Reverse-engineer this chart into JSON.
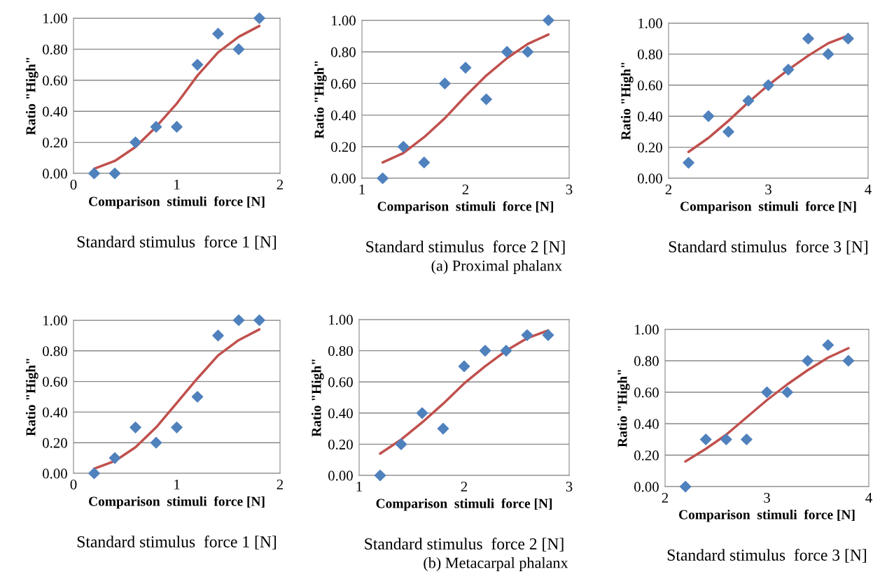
{
  "chart_data": [
    {
      "type": "scatter",
      "xlabel": "Comparison  stimuli  force [N]",
      "ylabel": "Ratio \"High\"",
      "annotations": [
        "Standard stimulus  force 1 [N]"
      ],
      "x": [
        0.2,
        0.4,
        0.6,
        0.8,
        1.0,
        1.2,
        1.4,
        1.6,
        1.8
      ],
      "xlim": [
        0,
        2
      ],
      "xticks": [
        0,
        1,
        2
      ],
      "ylim": [
        0,
        1
      ],
      "yticks": [
        {
          "value": 0,
          "label": "0.00"
        },
        {
          "value": 0.2,
          "label": "0.20"
        },
        {
          "value": 0.4,
          "label": "0.40"
        },
        {
          "value": 0.6,
          "label": "0.60"
        },
        {
          "value": 0.8,
          "label": "0.80"
        },
        {
          "value": 1,
          "label": "1.00"
        }
      ],
      "grid": "y",
      "legend": false,
      "series": [
        {
          "color": "#4f81bd",
          "marker": "diamond",
          "values": [
            0,
            0,
            0.2,
            0.3,
            0.3,
            0.7,
            0.9,
            0.8,
            1.0
          ]
        },
        {
          "type": "line",
          "color": "#c0504d",
          "marker": "none",
          "line_style": "solid",
          "values": [
            0.03,
            0.08,
            0.17,
            0.3,
            0.45,
            0.63,
            0.78,
            0.88,
            0.95
          ]
        }
      ]
    },
    {
      "type": "scatter",
      "xlabel": "Comparison  stimuli  force [N]",
      "ylabel": "Ratio \"High\"",
      "annotations": [
        "Standard stimulus  force 2 [N]",
        "(a) Proximal phalanx"
      ],
      "x": [
        1.2,
        1.4,
        1.6,
        1.8,
        2.0,
        2.2,
        2.4,
        2.6,
        2.8
      ],
      "xlim": [
        1,
        3
      ],
      "xticks": [
        1,
        2,
        3
      ],
      "ylim": [
        0,
        1
      ],
      "yticks": [
        {
          "value": 0,
          "label": "0.00"
        },
        {
          "value": 0.2,
          "label": "0.20"
        },
        {
          "value": 0.4,
          "label": "0.40"
        },
        {
          "value": 0.6,
          "label": "0.60"
        },
        {
          "value": 0.8,
          "label": "0.80"
        },
        {
          "value": 1,
          "label": "1.00"
        }
      ],
      "grid": "y",
      "legend": false,
      "series": [
        {
          "color": "#4f81bd",
          "marker": "diamond",
          "values": [
            0,
            0.2,
            0.1,
            0.6,
            0.7,
            0.5,
            0.8,
            0.8,
            1.0
          ]
        },
        {
          "type": "line",
          "color": "#c0504d",
          "marker": "none",
          "line_style": "solid",
          "values": [
            0.1,
            0.16,
            0.26,
            0.38,
            0.52,
            0.65,
            0.76,
            0.85,
            0.91
          ]
        }
      ]
    },
    {
      "type": "scatter",
      "xlabel": "Comparison  stimuli  force [N]",
      "ylabel": "Ratio \"High\"",
      "annotations": [
        "Standard stimulus  force 3 [N]"
      ],
      "x": [
        2.2,
        2.4,
        2.6,
        2.8,
        3.0,
        3.2,
        3.4,
        3.6,
        3.8
      ],
      "xlim": [
        2,
        4
      ],
      "xticks": [
        2,
        3,
        4
      ],
      "ylim": [
        0,
        1
      ],
      "yticks": [
        {
          "value": 0,
          "label": "0.00"
        },
        {
          "value": 0.2,
          "label": "0.20"
        },
        {
          "value": 0.4,
          "label": "0.40"
        },
        {
          "value": 0.6,
          "label": "0.60"
        },
        {
          "value": 0.8,
          "label": "0.80"
        },
        {
          "value": 1,
          "label": "1.00"
        }
      ],
      "grid": "y",
      "legend": false,
      "series": [
        {
          "color": "#4f81bd",
          "marker": "diamond",
          "values": [
            0.1,
            0.4,
            0.3,
            0.5,
            0.6,
            0.7,
            0.9,
            0.8,
            0.9
          ]
        },
        {
          "type": "line",
          "color": "#c0504d",
          "marker": "none",
          "line_style": "solid",
          "values": [
            0.17,
            0.26,
            0.37,
            0.49,
            0.6,
            0.7,
            0.79,
            0.87,
            0.92
          ]
        }
      ]
    },
    {
      "type": "scatter",
      "xlabel": "Comparison  stimuli  force [N]",
      "ylabel": "Ratio \"High\"",
      "annotations": [
        "Standard stimulus  force 1 [N]"
      ],
      "x": [
        0.2,
        0.4,
        0.6,
        0.8,
        1.0,
        1.2,
        1.4,
        1.6,
        1.8
      ],
      "xlim": [
        0,
        2
      ],
      "xticks": [
        0,
        1,
        2
      ],
      "ylim": [
        0,
        1
      ],
      "yticks": [
        {
          "value": 0,
          "label": "0.00"
        },
        {
          "value": 0.2,
          "label": "0.20"
        },
        {
          "value": 0.4,
          "label": "0.40"
        },
        {
          "value": 0.6,
          "label": "0.60"
        },
        {
          "value": 0.8,
          "label": "0.80"
        },
        {
          "value": 1,
          "label": "1.00"
        }
      ],
      "grid": "y",
      "legend": false,
      "series": [
        {
          "color": "#4f81bd",
          "marker": "diamond",
          "values": [
            0,
            0.1,
            0.3,
            0.2,
            0.3,
            0.5,
            0.9,
            1.0,
            1.0
          ]
        },
        {
          "type": "line",
          "color": "#c0504d",
          "marker": "none",
          "line_style": "solid",
          "values": [
            0.03,
            0.08,
            0.17,
            0.3,
            0.46,
            0.62,
            0.77,
            0.87,
            0.94
          ]
        }
      ]
    },
    {
      "type": "scatter",
      "xlabel": "Comparison  stimuli  force [N]",
      "ylabel": "Ratio \"High\"",
      "annotations": [
        "Standard stimulus  force 2 [N]",
        "(b) Metacarpal phalanx"
      ],
      "x": [
        1.2,
        1.4,
        1.6,
        1.8,
        2.0,
        2.2,
        2.4,
        2.6,
        2.8
      ],
      "xlim": [
        1,
        3
      ],
      "xticks": [
        1,
        2,
        3
      ],
      "ylim": [
        0,
        1
      ],
      "yticks": [
        {
          "value": 0,
          "label": "0.00"
        },
        {
          "value": 0.2,
          "label": "0.20"
        },
        {
          "value": 0.4,
          "label": "0.40"
        },
        {
          "value": 0.6,
          "label": "0.60"
        },
        {
          "value": 0.8,
          "label": "0.80"
        },
        {
          "value": 1,
          "label": "1.00"
        }
      ],
      "grid": "y",
      "legend": false,
      "series": [
        {
          "color": "#4f81bd",
          "marker": "diamond",
          "values": [
            0,
            0.2,
            0.4,
            0.3,
            0.7,
            0.8,
            0.8,
            0.9,
            0.9
          ]
        },
        {
          "type": "line",
          "color": "#c0504d",
          "marker": "none",
          "line_style": "solid",
          "values": [
            0.14,
            0.23,
            0.34,
            0.46,
            0.59,
            0.7,
            0.8,
            0.88,
            0.93
          ]
        }
      ]
    },
    {
      "type": "scatter",
      "xlabel": "Comparison  stimuli  force [N]",
      "ylabel": "Ratio \"High\"",
      "annotations": [
        "Standard stimulus  force 3 [N]"
      ],
      "x": [
        2.2,
        2.4,
        2.6,
        2.8,
        3.0,
        3.2,
        3.4,
        3.6,
        3.8
      ],
      "xlim": [
        2,
        4
      ],
      "xticks": [
        2,
        3,
        4
      ],
      "ylim": [
        0,
        1
      ],
      "yticks": [
        {
          "value": 0,
          "label": "0.00"
        },
        {
          "value": 0.2,
          "label": "0.20"
        },
        {
          "value": 0.4,
          "label": "0.40"
        },
        {
          "value": 0.6,
          "label": "0.60"
        },
        {
          "value": 0.8,
          "label": "0.80"
        },
        {
          "value": 1,
          "label": "1.00"
        }
      ],
      "grid": "y",
      "legend": false,
      "series": [
        {
          "color": "#4f81bd",
          "marker": "diamond",
          "values": [
            0,
            0.3,
            0.3,
            0.3,
            0.6,
            0.6,
            0.8,
            0.9,
            0.8
          ]
        },
        {
          "type": "line",
          "color": "#c0504d",
          "marker": "none",
          "line_style": "solid",
          "values": [
            0.16,
            0.24,
            0.33,
            0.44,
            0.55,
            0.65,
            0.74,
            0.82,
            0.88
          ]
        }
      ]
    }
  ]
}
